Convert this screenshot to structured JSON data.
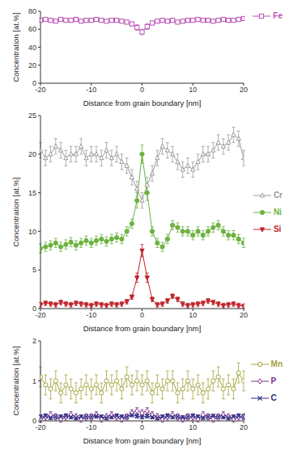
{
  "chart_data": [
    {
      "type": "line",
      "xlabel": "Distance from grain boundary [nm]",
      "ylabel": "Concentration [at.%]",
      "grid": false,
      "x": [
        -20,
        -19,
        -18,
        -17,
        -16,
        -15,
        -14,
        -13,
        -12,
        -11,
        -10,
        -9,
        -8,
        -7,
        -6,
        -5,
        -4,
        -3,
        -2,
        -1,
        0,
        1,
        2,
        3,
        4,
        5,
        6,
        7,
        8,
        9,
        10,
        11,
        12,
        13,
        14,
        15,
        16,
        17,
        18,
        19,
        20
      ],
      "xlim": [
        -20,
        20
      ],
      "xticks": [
        -20,
        -10,
        0,
        10,
        20
      ],
      "ylim": [
        0,
        80
      ],
      "yticks": [
        0,
        20,
        40,
        60,
        80
      ],
      "series": [
        {
          "name": "Fe",
          "color": "#b94fb5",
          "marker": "square-open",
          "values": [
            70,
            71,
            70,
            69,
            71,
            70,
            70,
            71,
            69,
            70,
            70,
            71,
            70,
            69,
            70,
            70,
            69,
            68,
            66,
            62,
            57,
            63,
            67,
            69,
            70,
            69,
            70,
            68,
            69,
            70,
            70,
            71,
            70,
            70,
            69,
            70,
            71,
            70,
            70,
            71,
            72
          ],
          "errors": [
            2,
            2,
            2,
            2,
            2,
            2,
            2,
            2,
            2,
            2,
            2,
            2,
            2,
            2,
            2,
            2,
            2,
            2,
            2,
            3,
            3,
            3,
            2,
            2,
            2,
            2,
            2,
            2,
            2,
            2,
            2,
            2,
            2,
            2,
            2,
            2,
            2,
            2,
            2,
            2,
            2
          ]
        }
      ]
    },
    {
      "type": "line",
      "xlabel": "Distance from grain boundary [nm]",
      "ylabel": "Concentration [at.%]",
      "grid": false,
      "x": [
        -20,
        -19,
        -18,
        -17,
        -16,
        -15,
        -14,
        -13,
        -12,
        -11,
        -10,
        -9,
        -8,
        -7,
        -6,
        -5,
        -4,
        -3,
        -2,
        -1,
        0,
        1,
        2,
        3,
        4,
        5,
        6,
        7,
        8,
        9,
        10,
        11,
        12,
        13,
        14,
        15,
        16,
        17,
        18,
        19,
        20
      ],
      "xlim": [
        -20,
        20
      ],
      "xticks": [
        -20,
        -10,
        0,
        10,
        20
      ],
      "ylim": [
        0,
        25
      ],
      "yticks": [
        0,
        5,
        10,
        15,
        20,
        25
      ],
      "series": [
        {
          "name": "Cr",
          "color": "#9a9a9a",
          "marker": "triangle-open",
          "values": [
            20.5,
            19.5,
            20,
            21,
            20.5,
            19.5,
            20,
            20,
            21,
            19.5,
            20,
            20,
            19.5,
            20.5,
            19.5,
            20,
            19,
            18.5,
            17,
            15.5,
            14,
            16,
            17.5,
            19.5,
            21,
            20.5,
            20,
            19,
            18,
            18.5,
            18,
            19,
            20,
            20,
            20.5,
            21.5,
            21,
            21.5,
            22.5,
            22,
            19.5
          ],
          "errors": [
            1,
            1,
            1,
            1,
            1,
            1,
            1,
            1,
            1,
            1,
            1,
            1,
            1,
            1,
            1,
            1,
            1,
            1,
            1,
            1,
            1,
            1,
            1,
            1,
            1,
            1,
            1,
            1,
            1,
            1,
            1,
            1,
            1,
            1,
            1,
            1,
            1,
            1,
            1,
            1,
            1
          ]
        },
        {
          "name": "Ni",
          "color": "#6cb33f",
          "marker": "circle",
          "values": [
            7.8,
            8,
            8.2,
            8.5,
            8,
            8.3,
            8.6,
            8.2,
            8.5,
            8.8,
            8.5,
            8.8,
            9,
            8.7,
            9,
            9.2,
            9,
            10,
            11,
            14,
            20,
            15,
            10,
            8.5,
            8,
            9,
            10.8,
            10.5,
            10,
            10,
            9.5,
            10,
            9.5,
            10,
            10.5,
            10.8,
            10,
            9.5,
            9.5,
            9,
            8.5
          ],
          "errors": [
            0.6,
            0.6,
            0.6,
            0.6,
            0.6,
            0.6,
            0.6,
            0.6,
            0.6,
            0.6,
            0.6,
            0.6,
            0.6,
            0.6,
            0.6,
            0.6,
            0.6,
            0.6,
            0.6,
            1,
            1.2,
            1,
            0.6,
            0.6,
            0.6,
            0.6,
            0.6,
            0.6,
            0.6,
            0.6,
            0.6,
            0.6,
            0.6,
            0.6,
            0.6,
            0.6,
            0.6,
            0.6,
            0.6,
            0.6,
            0.6
          ]
        },
        {
          "name": "Si",
          "color": "#c0262c",
          "marker": "triangle-down",
          "values": [
            0.5,
            0.7,
            0.6,
            0.5,
            0.8,
            0.6,
            0.5,
            0.7,
            0.6,
            0.5,
            0.4,
            0.6,
            0.5,
            0.4,
            0.6,
            0.5,
            0.6,
            0.9,
            1.5,
            4,
            7.5,
            4,
            1.2,
            0.5,
            0.6,
            1,
            1.6,
            1.2,
            0.6,
            0.4,
            0.5,
            0.6,
            0.7,
            1,
            0.8,
            0.6,
            0.4,
            0.5,
            0.6,
            0.4,
            0.3
          ],
          "errors": [
            0.3,
            0.3,
            0.3,
            0.3,
            0.3,
            0.3,
            0.3,
            0.3,
            0.3,
            0.3,
            0.3,
            0.3,
            0.3,
            0.3,
            0.3,
            0.3,
            0.3,
            0.3,
            0.3,
            0.6,
            0.8,
            0.6,
            0.3,
            0.3,
            0.3,
            0.3,
            0.3,
            0.3,
            0.3,
            0.3,
            0.3,
            0.3,
            0.3,
            0.3,
            0.3,
            0.3,
            0.3,
            0.3,
            0.3,
            0.3,
            0.3
          ]
        }
      ]
    },
    {
      "type": "line",
      "xlabel": "Distance from grain boundary [nm]",
      "ylabel": "Concentration [at.%]",
      "grid": false,
      "x": [
        -20,
        -19,
        -18,
        -17,
        -16,
        -15,
        -14,
        -13,
        -12,
        -11,
        -10,
        -9,
        -8,
        -7,
        -6,
        -5,
        -4,
        -3,
        -2,
        -1,
        0,
        1,
        2,
        3,
        4,
        5,
        6,
        7,
        8,
        9,
        10,
        11,
        12,
        13,
        14,
        15,
        16,
        17,
        18,
        19,
        20
      ],
      "xlim": [
        -20,
        20
      ],
      "xticks": [
        -20,
        -10,
        0,
        10,
        20
      ],
      "ylim": [
        0,
        2
      ],
      "yticks": [
        0,
        1,
        2
      ],
      "series": [
        {
          "name": "Mn",
          "color": "#a3a23b",
          "marker": "circle-open",
          "values": [
            1.1,
            0.9,
            0.8,
            1,
            0.7,
            0.9,
            0.8,
            0.7,
            0.8,
            0.9,
            0.8,
            0.9,
            0.7,
            1,
            0.9,
            1,
            0.8,
            1.1,
            0.9,
            1,
            0.9,
            1,
            0.7,
            0.9,
            0.8,
            1,
            1,
            0.7,
            0.8,
            1,
            0.8,
            0.9,
            0.7,
            0.8,
            1,
            1.1,
            0.8,
            0.9,
            0.8,
            1.2,
            1
          ],
          "errors": [
            0.25,
            0.25,
            0.25,
            0.25,
            0.25,
            0.25,
            0.25,
            0.25,
            0.25,
            0.25,
            0.25,
            0.25,
            0.25,
            0.25,
            0.25,
            0.25,
            0.25,
            0.25,
            0.25,
            0.25,
            0.25,
            0.25,
            0.25,
            0.25,
            0.25,
            0.25,
            0.25,
            0.25,
            0.25,
            0.25,
            0.25,
            0.25,
            0.25,
            0.25,
            0.25,
            0.25,
            0.25,
            0.25,
            0.25,
            0.25,
            0.25
          ]
        },
        {
          "name": "P",
          "color": "#7d2f8f",
          "marker": "diamond-open",
          "values": [
            0.05,
            0.1,
            0.15,
            0.1,
            0.05,
            0.1,
            0.15,
            0.1,
            0.05,
            0.1,
            0.1,
            0.15,
            0.05,
            0.1,
            0.15,
            0.1,
            0.05,
            0.1,
            0.2,
            0.25,
            0.2,
            0.25,
            0.15,
            0.1,
            0.05,
            0.1,
            0.15,
            0.1,
            0.05,
            0.1,
            0.1,
            0.05,
            0.15,
            0.1,
            0.05,
            0.1,
            0.15,
            0.1,
            0.05,
            0.1,
            0.1
          ],
          "errors": [
            0.08,
            0.08,
            0.08,
            0.08,
            0.08,
            0.08,
            0.08,
            0.08,
            0.08,
            0.08,
            0.08,
            0.08,
            0.08,
            0.08,
            0.08,
            0.08,
            0.08,
            0.08,
            0.08,
            0.08,
            0.08,
            0.08,
            0.08,
            0.08,
            0.08,
            0.08,
            0.08,
            0.08,
            0.08,
            0.08,
            0.08,
            0.08,
            0.08,
            0.08,
            0.08,
            0.08,
            0.08,
            0.08,
            0.08,
            0.08,
            0.08
          ]
        },
        {
          "name": "C",
          "color": "#2a2a80",
          "marker": "x",
          "values": [
            0.1,
            0.12,
            0.08,
            0.1,
            0.1,
            0.12,
            0.1,
            0.08,
            0.1,
            0.1,
            0.1,
            0.12,
            0.1,
            0.08,
            0.1,
            0.12,
            0.1,
            0.1,
            0.15,
            0.12,
            0.1,
            0.12,
            0.1,
            0.08,
            0.1,
            0.12,
            0.1,
            0.1,
            0.08,
            0.1,
            0.12,
            0.1,
            0.08,
            0.1,
            0.12,
            0.1,
            0.1,
            0.08,
            0.1,
            0.12,
            0.1
          ],
          "errors": [
            0.05,
            0.05,
            0.05,
            0.05,
            0.05,
            0.05,
            0.05,
            0.05,
            0.05,
            0.05,
            0.05,
            0.05,
            0.05,
            0.05,
            0.05,
            0.05,
            0.05,
            0.05,
            0.05,
            0.05,
            0.05,
            0.05,
            0.05,
            0.05,
            0.05,
            0.05,
            0.05,
            0.05,
            0.05,
            0.05,
            0.05,
            0.05,
            0.05,
            0.05,
            0.05,
            0.05,
            0.05,
            0.05,
            0.05,
            0.05,
            0.05
          ]
        }
      ]
    }
  ]
}
